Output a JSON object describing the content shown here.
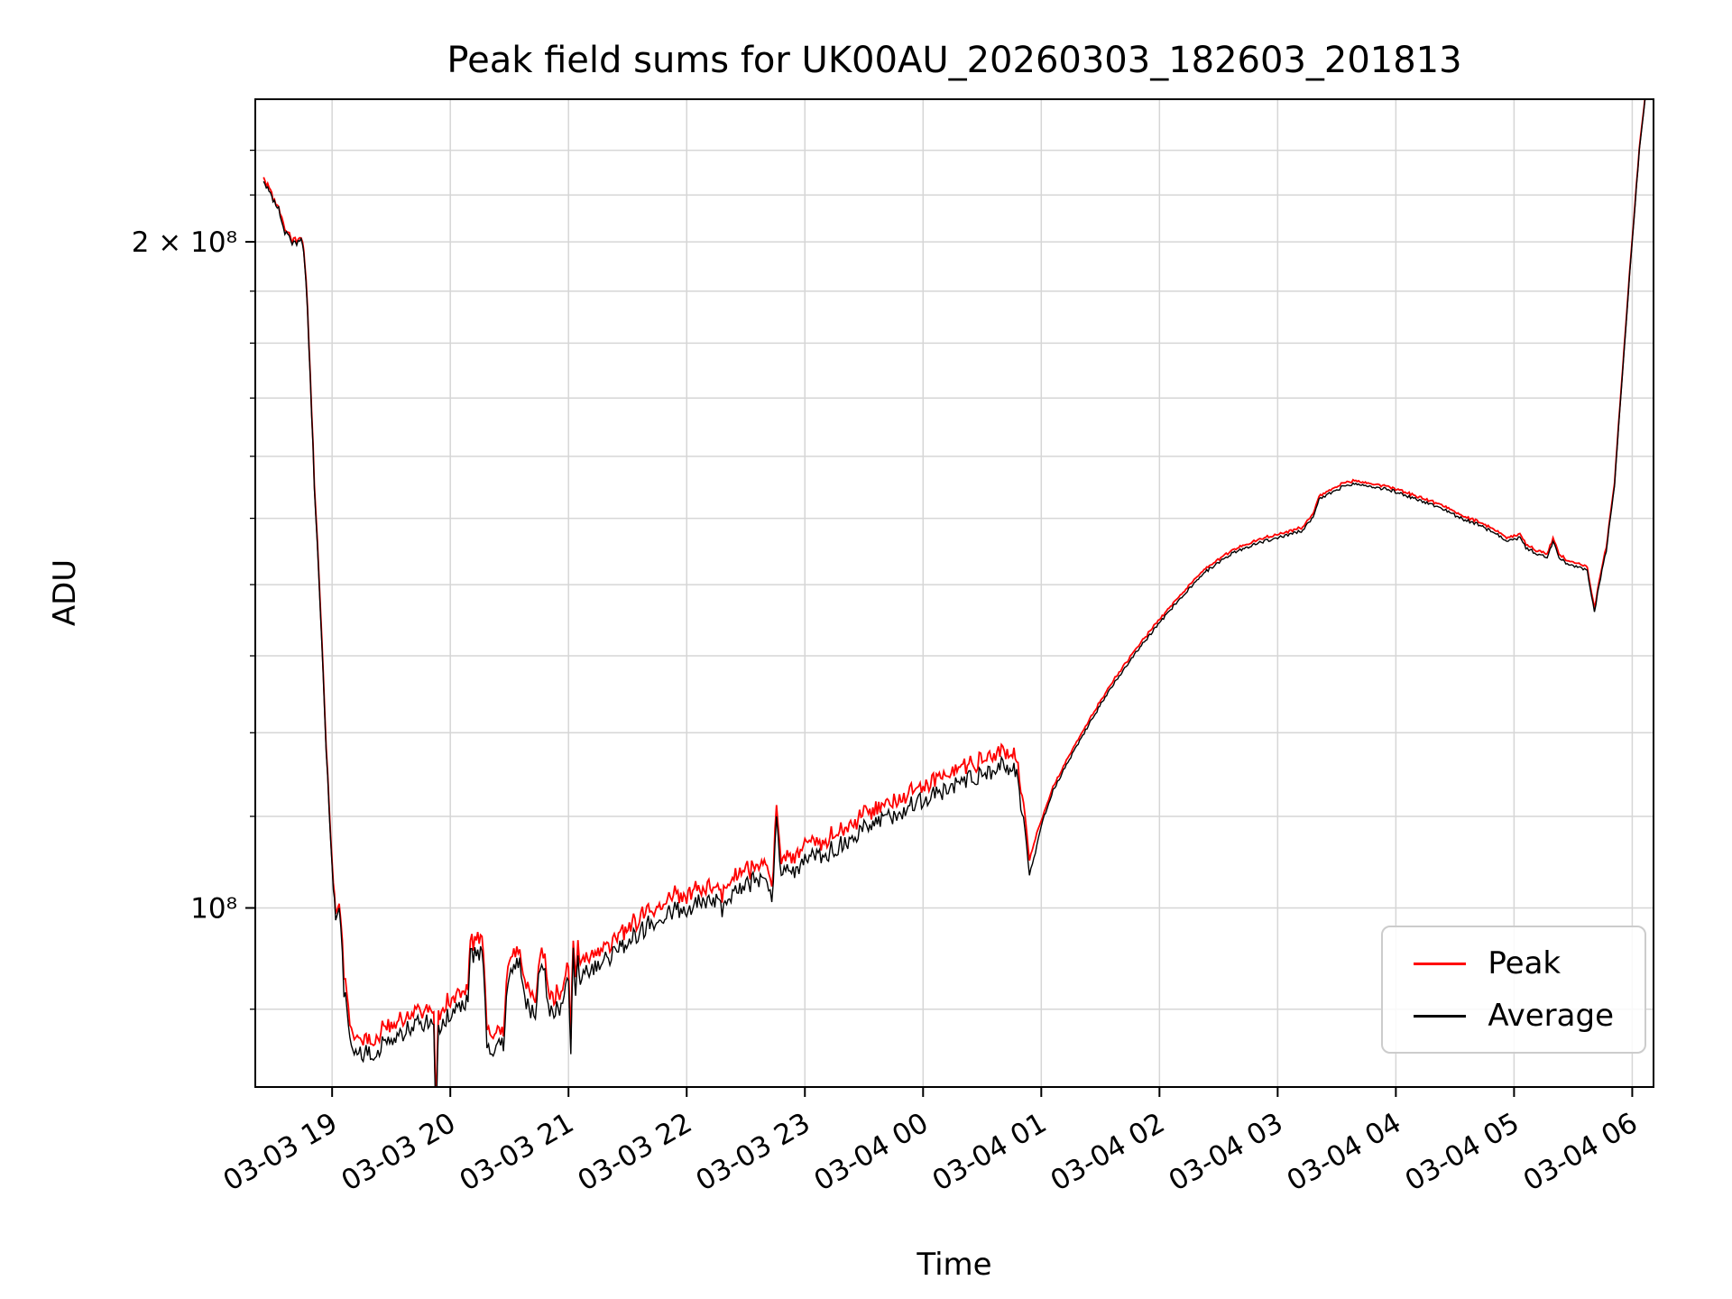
{
  "chart_data": {
    "type": "line",
    "title": "Peak field sums for UK00AU_20260303_182603_201813",
    "xlabel": "Time",
    "ylabel": "ADU",
    "yscale": "log",
    "xlim": [
      18.35,
      30.18
    ],
    "ylim_e8": [
      0.83,
      2.32
    ],
    "x_ticks": [
      {
        "t": 19,
        "label": "03-03 19"
      },
      {
        "t": 20,
        "label": "03-03 20"
      },
      {
        "t": 21,
        "label": "03-03 21"
      },
      {
        "t": 22,
        "label": "03-03 22"
      },
      {
        "t": 23,
        "label": "03-03 23"
      },
      {
        "t": 24,
        "label": "03-04 00"
      },
      {
        "t": 25,
        "label": "03-04 01"
      },
      {
        "t": 26,
        "label": "03-04 02"
      },
      {
        "t": 27,
        "label": "03-04 03"
      },
      {
        "t": 28,
        "label": "03-04 04"
      },
      {
        "t": 29,
        "label": "03-04 05"
      },
      {
        "t": 30,
        "label": "03-04 06"
      }
    ],
    "y_major_ticks": [
      {
        "v_e8": 1.0,
        "label": "10⁸"
      },
      {
        "v_e8": 2.0,
        "label": "2 × 10⁸"
      }
    ],
    "y_minor_ticks_e8": [
      0.9,
      1.1,
      1.2,
      1.3,
      1.4,
      1.5,
      1.6,
      1.7,
      1.8,
      1.9,
      2.1,
      2.2
    ],
    "grid": {
      "color": "#d6d6d6"
    },
    "value_unit": "1e8 ADU",
    "t": [
      18.42,
      18.5,
      18.56,
      18.6,
      18.65,
      18.75,
      18.78,
      18.85,
      18.95,
      19.0,
      19.03,
      19.06,
      19.1,
      19.15,
      19.2,
      19.3,
      19.4,
      19.5,
      19.6,
      19.7,
      19.8,
      19.86,
      19.88,
      19.9,
      20.0,
      20.1,
      20.15,
      20.17,
      20.22,
      20.28,
      20.31,
      20.35,
      20.45,
      20.5,
      20.55,
      20.6,
      20.63,
      20.68,
      20.72,
      20.76,
      20.8,
      20.83,
      20.9,
      20.95,
      21.0,
      21.02,
      21.04,
      21.06,
      21.08,
      21.1,
      21.15,
      21.25,
      21.4,
      21.55,
      21.7,
      21.85,
      22.0,
      22.1,
      22.2,
      22.3,
      22.4,
      22.5,
      22.6,
      22.68,
      22.72,
      22.76,
      22.8,
      22.85,
      22.9,
      23.0,
      23.1,
      23.2,
      23.35,
      23.5,
      23.65,
      23.8,
      23.9,
      24.0,
      24.1,
      24.2,
      24.3,
      24.4,
      24.5,
      24.6,
      24.7,
      24.78,
      24.85,
      24.9,
      24.95,
      25.0,
      25.1,
      25.25,
      25.4,
      25.6,
      25.8,
      26.0,
      26.2,
      26.4,
      26.6,
      26.8,
      26.9,
      27.0,
      27.1,
      27.2,
      27.3,
      27.35,
      27.45,
      27.55,
      27.65,
      27.8,
      27.95,
      28.1,
      28.25,
      28.4,
      28.55,
      28.7,
      28.85,
      28.95,
      29.05,
      29.1,
      29.2,
      29.28,
      29.33,
      29.38,
      29.45,
      29.55,
      29.62,
      29.68,
      29.72,
      29.78,
      29.85,
      29.92,
      30.0,
      30.06,
      30.12
    ],
    "series": [
      {
        "name": "Peak",
        "color": "#ff0000",
        "v_e8": [
          2.135,
          2.095,
          2.065,
          2.025,
          2.005,
          2.005,
          1.926,
          1.556,
          1.185,
          1.046,
          0.996,
          1.006,
          0.934,
          0.888,
          0.875,
          0.871,
          0.878,
          0.885,
          0.891,
          0.898,
          0.901,
          0.896,
          0.812,
          0.898,
          0.908,
          0.919,
          0.919,
          0.964,
          0.969,
          0.964,
          0.883,
          0.878,
          0.881,
          0.954,
          0.959,
          0.954,
          0.919,
          0.914,
          0.908,
          0.954,
          0.949,
          0.914,
          0.914,
          0.919,
          0.944,
          0.875,
          0.964,
          0.924,
          0.964,
          0.944,
          0.949,
          0.959,
          0.969,
          0.985,
          1.0,
          1.01,
          1.015,
          1.02,
          1.025,
          1.015,
          1.035,
          1.04,
          1.045,
          1.051,
          1.015,
          1.106,
          1.045,
          1.056,
          1.051,
          1.066,
          1.071,
          1.076,
          1.086,
          1.101,
          1.111,
          1.122,
          1.132,
          1.137,
          1.142,
          1.147,
          1.157,
          1.162,
          1.167,
          1.172,
          1.177,
          1.172,
          1.117,
          1.051,
          1.076,
          1.095,
          1.135,
          1.175,
          1.215,
          1.265,
          1.31,
          1.35,
          1.39,
          1.425,
          1.45,
          1.465,
          1.47,
          1.475,
          1.48,
          1.485,
          1.505,
          1.535,
          1.545,
          1.555,
          1.56,
          1.555,
          1.55,
          1.54,
          1.53,
          1.52,
          1.505,
          1.495,
          1.48,
          1.47,
          1.475,
          1.46,
          1.45,
          1.445,
          1.47,
          1.445,
          1.435,
          1.43,
          1.425,
          1.365,
          1.405,
          1.455,
          1.555,
          1.755,
          2.005,
          2.205,
          2.355
        ]
      },
      {
        "name": "Average",
        "color": "#000000",
        "v_e8": [
          2.13,
          2.09,
          2.06,
          2.02,
          2.0,
          2.0,
          1.92,
          1.55,
          1.18,
          1.04,
          0.99,
          1.0,
          0.92,
          0.875,
          0.862,
          0.858,
          0.865,
          0.872,
          0.878,
          0.885,
          0.888,
          0.883,
          0.8,
          0.885,
          0.895,
          0.905,
          0.905,
          0.95,
          0.955,
          0.95,
          0.87,
          0.865,
          0.868,
          0.94,
          0.945,
          0.94,
          0.905,
          0.9,
          0.895,
          0.94,
          0.935,
          0.9,
          0.9,
          0.905,
          0.93,
          0.862,
          0.95,
          0.91,
          0.95,
          0.93,
          0.935,
          0.945,
          0.955,
          0.97,
          0.985,
          0.995,
          1.0,
          1.005,
          1.01,
          1.0,
          1.02,
          1.025,
          1.03,
          1.035,
          1.0,
          1.09,
          1.03,
          1.04,
          1.035,
          1.05,
          1.055,
          1.06,
          1.07,
          1.085,
          1.095,
          1.105,
          1.115,
          1.12,
          1.125,
          1.13,
          1.14,
          1.145,
          1.15,
          1.155,
          1.16,
          1.155,
          1.1,
          1.035,
          1.06,
          1.09,
          1.13,
          1.17,
          1.21,
          1.26,
          1.305,
          1.345,
          1.385,
          1.42,
          1.445,
          1.46,
          1.465,
          1.47,
          1.475,
          1.48,
          1.5,
          1.53,
          1.54,
          1.55,
          1.555,
          1.55,
          1.545,
          1.535,
          1.525,
          1.515,
          1.5,
          1.49,
          1.475,
          1.465,
          1.47,
          1.455,
          1.445,
          1.44,
          1.465,
          1.44,
          1.43,
          1.425,
          1.42,
          1.36,
          1.4,
          1.45,
          1.55,
          1.75,
          2.0,
          2.2,
          2.35
        ]
      }
    ],
    "noise_segments": [
      {
        "from": 18.3,
        "to": 19.05,
        "amp": 0.004
      },
      {
        "from": 19.05,
        "to": 24.85,
        "amp": 0.01
      },
      {
        "from": 24.85,
        "to": 30.2,
        "amp": 0.0016
      }
    ],
    "legend": {
      "location": "lower right",
      "entries": [
        "Peak",
        "Average"
      ]
    }
  }
}
